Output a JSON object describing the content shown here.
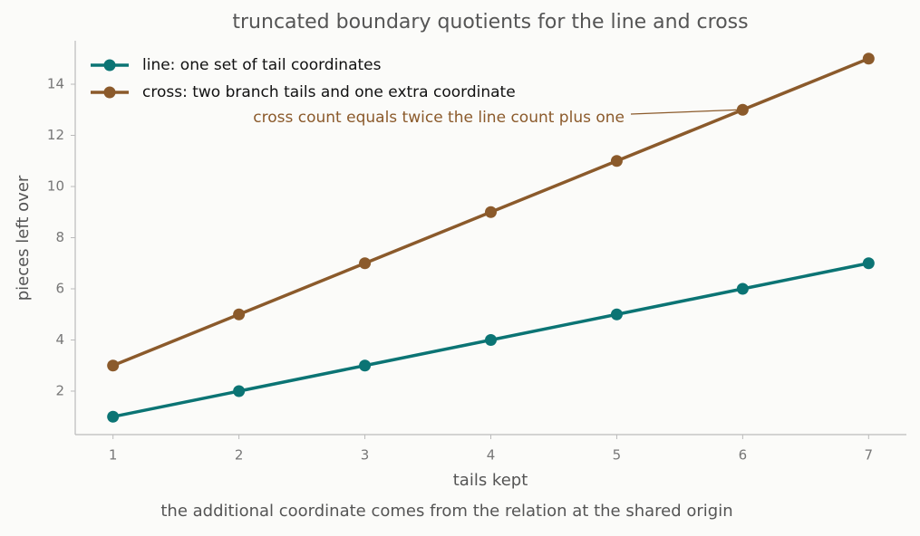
{
  "chart_data": {
    "type": "line",
    "title": "truncated boundary quotients for the line and cross",
    "xlabel": "tails kept",
    "ylabel": "pieces left over",
    "caption": "the additional coordinate comes from the relation at the shared origin",
    "x": [
      1,
      2,
      3,
      4,
      5,
      6,
      7
    ],
    "series": [
      {
        "name": "line: one set of tail coordinates",
        "color": "#0b7474",
        "values": [
          1,
          2,
          3,
          4,
          5,
          6,
          7
        ]
      },
      {
        "name": "cross: two branch tails and one extra coordinate",
        "color": "#8b5a2b",
        "values": [
          3,
          5,
          7,
          9,
          11,
          13,
          15
        ]
      }
    ],
    "annotation": {
      "text": "cross count equals twice the line count plus one",
      "x": 6,
      "y": 13,
      "color": "#8b5a2b"
    },
    "xlim": [
      0.7,
      7.3
    ],
    "xticks": [
      1,
      2,
      3,
      4,
      5,
      6,
      7
    ],
    "ylim": [
      0.3,
      15.7
    ],
    "yticks": [
      2,
      4,
      6,
      8,
      10,
      12,
      14
    ],
    "grid": false,
    "legend": "upper left"
  }
}
